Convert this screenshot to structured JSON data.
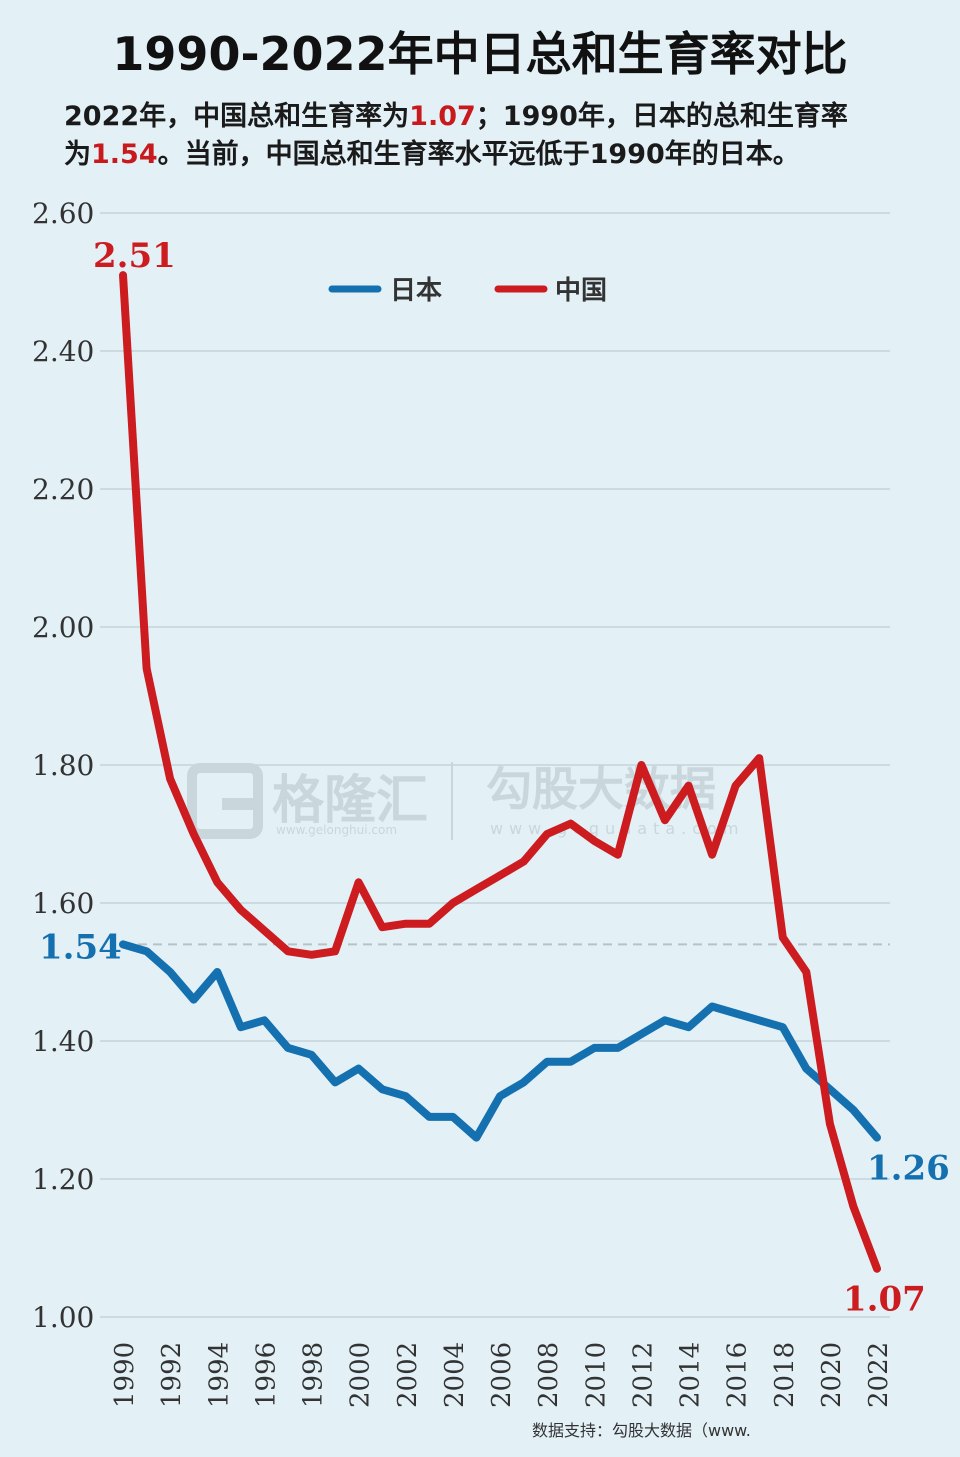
{
  "title": "1990-2022年中日总和生育率对比",
  "subtitle": {
    "line1_a": "2022年，中国总和生育率为",
    "line1_hl": "1.07",
    "line1_b": "；1990年，日本的总和生育率",
    "line2_a": "为",
    "line2_hl": "1.54",
    "line2_b": "。当前，中国总和生育率水平远低于1990年的日本。"
  },
  "watermarks": {
    "brand1": "格隆汇",
    "brand1_url": "www.gelonghui.com",
    "brand2": "勾股大数据",
    "brand2_url": "www.gogudata.com"
  },
  "source": "数据支持：勾股大数据（www.",
  "colors": {
    "japan": "#1570b0",
    "china": "#cc1c1f",
    "grid": "#c5d3da",
    "background": "#e3f1f7"
  },
  "chart_data": {
    "type": "line",
    "x": [
      1990,
      1991,
      1992,
      1993,
      1994,
      1995,
      1996,
      1997,
      1998,
      1999,
      2000,
      2001,
      2002,
      2003,
      2004,
      2005,
      2006,
      2007,
      2008,
      2009,
      2010,
      2011,
      2012,
      2013,
      2014,
      2015,
      2016,
      2017,
      2018,
      2019,
      2020,
      2021,
      2022
    ],
    "series": [
      {
        "name": "日本",
        "color": "#1570b0",
        "values": [
          1.54,
          1.53,
          1.5,
          1.46,
          1.5,
          1.42,
          1.43,
          1.39,
          1.38,
          1.34,
          1.36,
          1.33,
          1.32,
          1.29,
          1.29,
          1.26,
          1.32,
          1.34,
          1.37,
          1.37,
          1.39,
          1.39,
          1.41,
          1.43,
          1.42,
          1.45,
          1.44,
          1.43,
          1.42,
          1.36,
          1.33,
          1.3,
          1.26
        ]
      },
      {
        "name": "中国",
        "color": "#cc1c1f",
        "values": [
          2.51,
          1.94,
          1.78,
          1.7,
          1.63,
          1.59,
          1.56,
          1.53,
          1.525,
          1.53,
          1.63,
          1.565,
          1.57,
          1.57,
          1.6,
          1.62,
          1.64,
          1.66,
          1.7,
          1.715,
          1.69,
          1.67,
          1.8,
          1.72,
          1.77,
          1.67,
          1.77,
          1.81,
          1.55,
          1.5,
          1.28,
          1.16,
          1.07
        ]
      }
    ],
    "ylim": [
      1.0,
      2.6
    ],
    "yticks": [
      "1.00",
      "1.20",
      "1.40",
      "1.60",
      "1.80",
      "2.00",
      "2.20",
      "2.40",
      "2.60"
    ],
    "xticks": [
      "1990",
      "1992",
      "1994",
      "1996",
      "1998",
      "2000",
      "2002",
      "2004",
      "2006",
      "2008",
      "2010",
      "2012",
      "2014",
      "2016",
      "2018",
      "2020",
      "2022"
    ],
    "reference_line": 1.54,
    "annotations": [
      {
        "text": "2.51",
        "series": "中国",
        "year": 1990
      },
      {
        "text": "1.54",
        "series": "日本",
        "year": 1990
      },
      {
        "text": "1.26",
        "series": "日本",
        "year": 2022
      },
      {
        "text": "1.07",
        "series": "中国",
        "year": 2022
      }
    ],
    "grid": true,
    "legend": "top-center"
  }
}
